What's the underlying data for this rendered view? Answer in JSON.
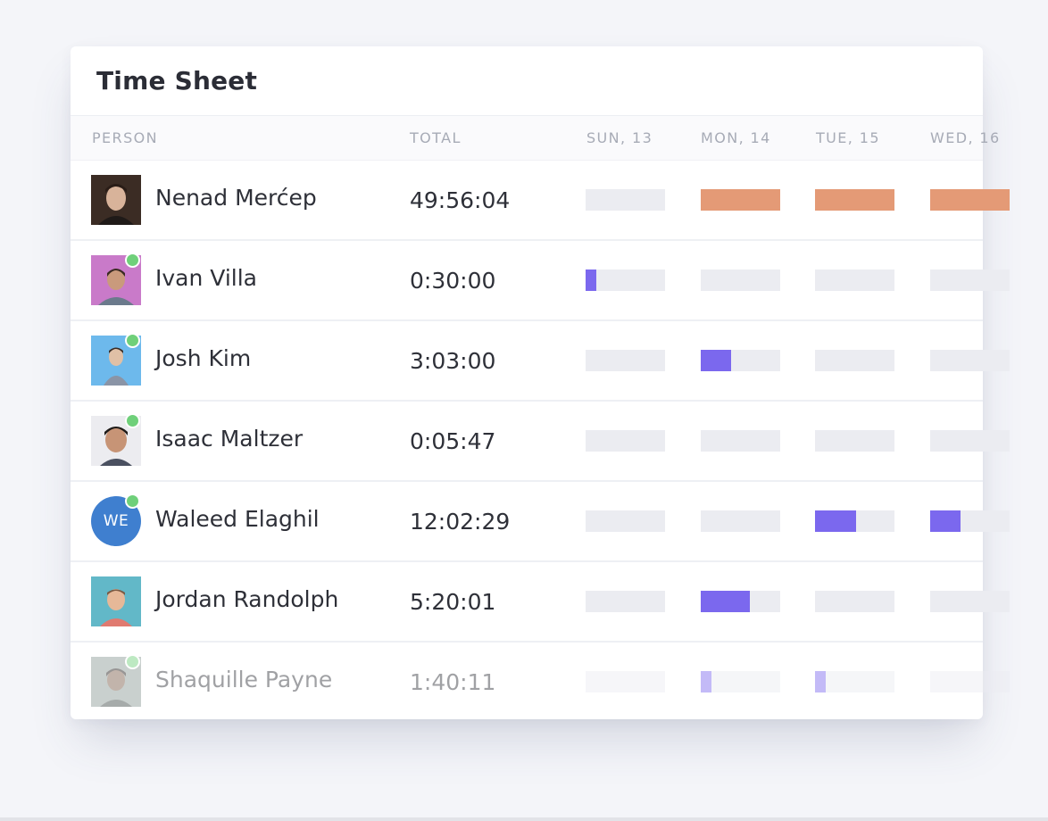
{
  "title": "Time Sheet",
  "columns": {
    "person": "PERSON",
    "total": "TOTAL",
    "days": [
      "SUN, 13",
      "MON, 14",
      "TUE, 15",
      "WED, 16"
    ]
  },
  "colors": {
    "over_target": "#e49a76",
    "logged": "#7b68ee",
    "track": "#ebecf1",
    "online": "#6fd07a"
  },
  "people": [
    {
      "name": "Nenad Merćep",
      "total": "49:56:04",
      "online": false,
      "days": [
        0,
        1,
        1,
        1
      ],
      "fill": "over_target"
    },
    {
      "name": "Ivan Villa",
      "total": "0:30:00",
      "online": true,
      "days": [
        0.13,
        0,
        0,
        0
      ],
      "fill": "logged"
    },
    {
      "name": "Josh Kim",
      "total": "3:03:00",
      "online": true,
      "days": [
        0,
        0.38,
        0,
        0
      ],
      "fill": "logged"
    },
    {
      "name": "Isaac Maltzer",
      "total": "0:05:47",
      "online": true,
      "days": [
        0,
        0,
        0,
        0
      ],
      "fill": "logged"
    },
    {
      "name": "Waleed Elaghil",
      "total": "12:02:29",
      "online": true,
      "initials": "WE",
      "days": [
        0,
        0,
        0.52,
        0.38
      ],
      "fill": "logged"
    },
    {
      "name": "Jordan Randolph",
      "total": "5:20:01",
      "online": false,
      "days": [
        0,
        0.62,
        0,
        0
      ],
      "fill": "logged"
    },
    {
      "name": "Shaquille Payne",
      "total": "1:40:11",
      "online": true,
      "days": [
        0,
        0.13,
        0.13,
        0
      ],
      "fill": "logged"
    }
  ]
}
